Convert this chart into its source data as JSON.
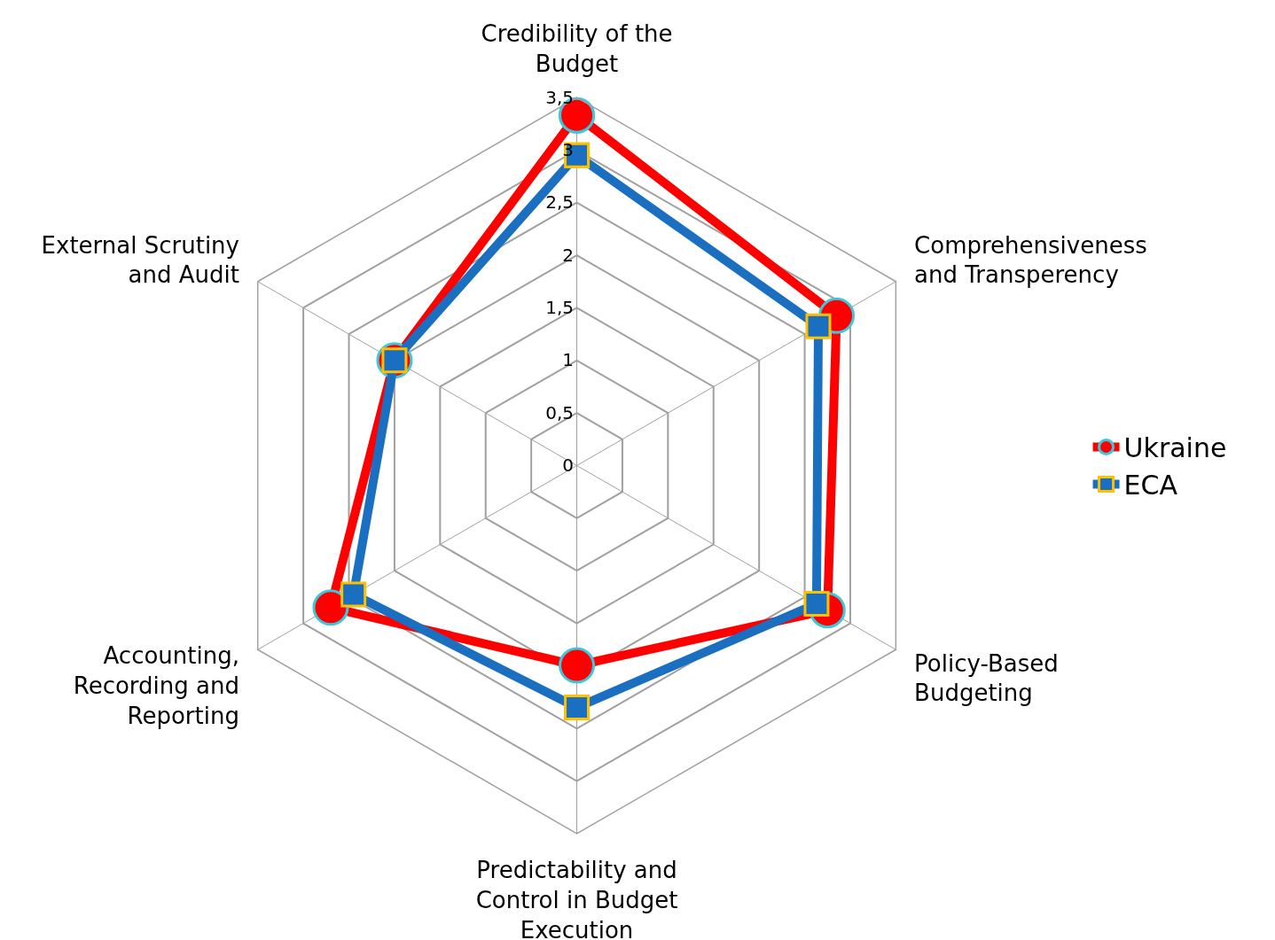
{
  "chart_data": {
    "type": "radar",
    "categories": [
      "Credibility of the Budget",
      "Comprehensiveness and Transperency",
      "Policy-Based Budgeting",
      "Predictability and Control in Budget Execution",
      "Accounting, Recording and Reporting",
      "External Scrutiny and Audit"
    ],
    "series": [
      {
        "name": "Ukraine",
        "color": "#ff0000",
        "marker": "circle",
        "values": [
          3.33,
          2.85,
          2.75,
          1.9,
          2.7,
          2.0
        ]
      },
      {
        "name": "ECA",
        "color": "#1a6fc0",
        "marker": "square",
        "values": [
          2.95,
          2.65,
          2.63,
          2.3,
          2.45,
          2.0
        ]
      }
    ],
    "ylim": [
      0,
      3.5
    ],
    "yticks": [
      0,
      {
        "value": 0.5,
        "label": "0,5"
      },
      1,
      {
        "value": 1.5,
        "label": "1,5"
      },
      2,
      {
        "value": 2.5,
        "label": "2,5"
      },
      3,
      {
        "value": 3.5,
        "label": "3,5"
      }
    ],
    "grid": true,
    "legend": "right"
  }
}
